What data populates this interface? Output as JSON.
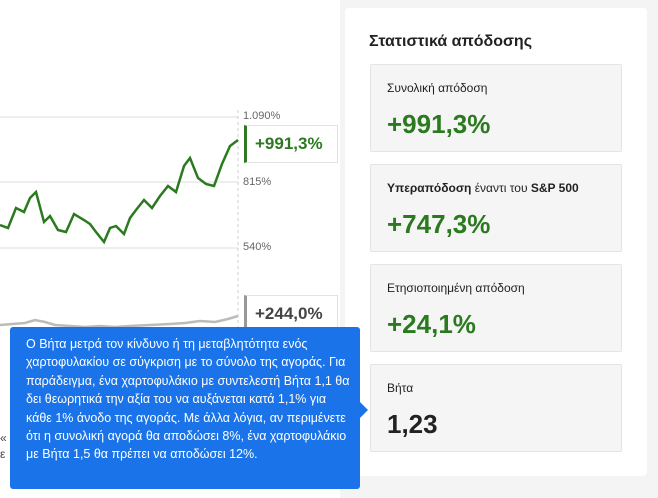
{
  "chart": {
    "tick_labels": [
      "1.090%",
      "815%",
      "540%"
    ],
    "callout_green": "+991,3%",
    "callout_gray": "+244,0%",
    "colors": {
      "portfolio": "#2b7a1f",
      "benchmark": "#bbbbbb",
      "grid": "#dddddd"
    },
    "edge_left_top": "«",
    "edge_left_bottom": "ε"
  },
  "tooltip": {
    "text": "Ο Βήτα μετρά τον κίνδυνο ή τη μεταβλητότητα ενός χαρτοφυλακίου σε σύγκριση με το σύνολο της αγοράς. Για παράδειγμα, ένα χαρτοφυλάκιο με συντελεστή Βήτα 1,1 θα δει θεωρητικά την αξία του να αυξάνεται κατά 1,1% για κάθε 1% άνοδο της αγοράς. Με άλλα λόγια, αν περιμένετε ότι η συνολική αγορά θα αποδώσει 8%, ένα χαρτοφυλάκιο με Βήτα 1,5 θα πρέπει να αποδώσει 12%."
  },
  "panel": {
    "title": "Στατιστικά απόδοσης",
    "cards": [
      {
        "label": "Συνολική απόδοση",
        "value": "+991,3%"
      },
      {
        "label_bold": "Υπεραπόδοση",
        "label_rest": " έναντι του ",
        "label_bold2": "S&P 500",
        "value": "+747,3%"
      },
      {
        "label": "Ετησιοποιημένη απόδοση",
        "value": "+24,1%"
      },
      {
        "label": "Βήτα",
        "value": "1,23"
      }
    ]
  }
}
